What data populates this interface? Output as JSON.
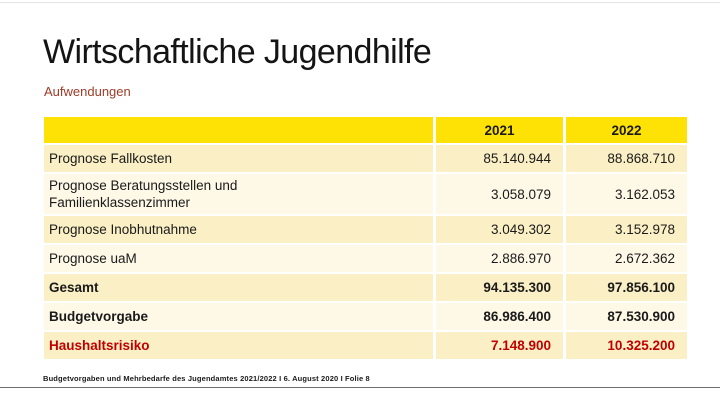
{
  "slide": {
    "title": "Wirtschaftliche Jugendhilfe",
    "subtitle": "Aufwendungen",
    "footer": "Budgetvorgaben und Mehrbedarfe des Jugendamtes 2021/2022 I 6. August 2020 I Folie 8"
  },
  "colors": {
    "header_yellow": "#ffe205",
    "row_pale_yellow": "#fbf0c5",
    "row_light_cream": "#fef8e7",
    "risk_red": "#c00000",
    "subtitle_red": "#9e3b26"
  },
  "table": {
    "columns": [
      "",
      "2021",
      "2022"
    ],
    "rows": [
      {
        "label": "Prognose Fallkosten",
        "v2021": "85.140.944",
        "v2022": "88.868.710"
      },
      {
        "label": "Prognose Beratungsstellen und\nFamilienklassenzimmer",
        "v2021": "3.058.079",
        "v2022": "3.162.053"
      },
      {
        "label": "Prognose Inobhutnahme",
        "v2021": "3.049.302",
        "v2022": "3.152.978"
      },
      {
        "label": "Prognose uaM",
        "v2021": "2.886.970",
        "v2022": "2.672.362"
      },
      {
        "label": "Gesamt",
        "v2021": "94.135.300",
        "v2022": "97.856.100"
      },
      {
        "label": "Budgetvorgabe",
        "v2021": "86.986.400",
        "v2022": "87.530.900"
      },
      {
        "label": "Haushaltsrisiko",
        "v2021": "7.148.900",
        "v2022": "10.325.200"
      }
    ]
  }
}
